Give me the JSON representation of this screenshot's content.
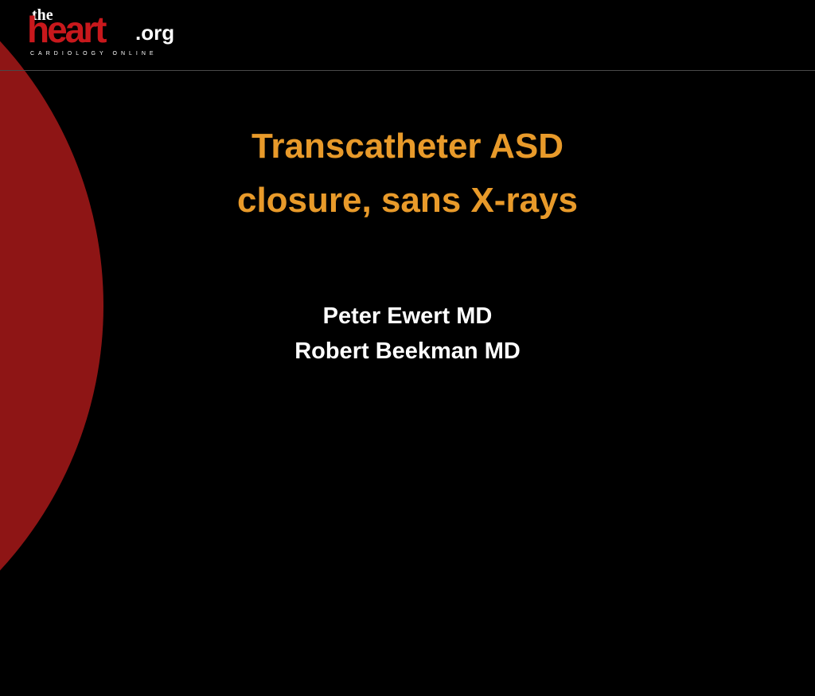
{
  "logo": {
    "the": "the",
    "heart": "heart",
    "org": ".org",
    "tagline": "CARDIOLOGY ONLINE"
  },
  "slide": {
    "title_line1": "Transcatheter ASD",
    "title_line2": "closure, sans X-rays",
    "author1": "Peter Ewert MD",
    "author2": "Robert Beekman MD"
  },
  "colors": {
    "background": "#000000",
    "accent_red": "#8e1515",
    "logo_red": "#c8181c",
    "title_orange": "#e89a2a",
    "text_white": "#ffffff",
    "line_gray": "#4a4a4a"
  },
  "typography": {
    "title_fontsize": 44,
    "author_fontsize": 29,
    "font_family": "Verdana"
  }
}
